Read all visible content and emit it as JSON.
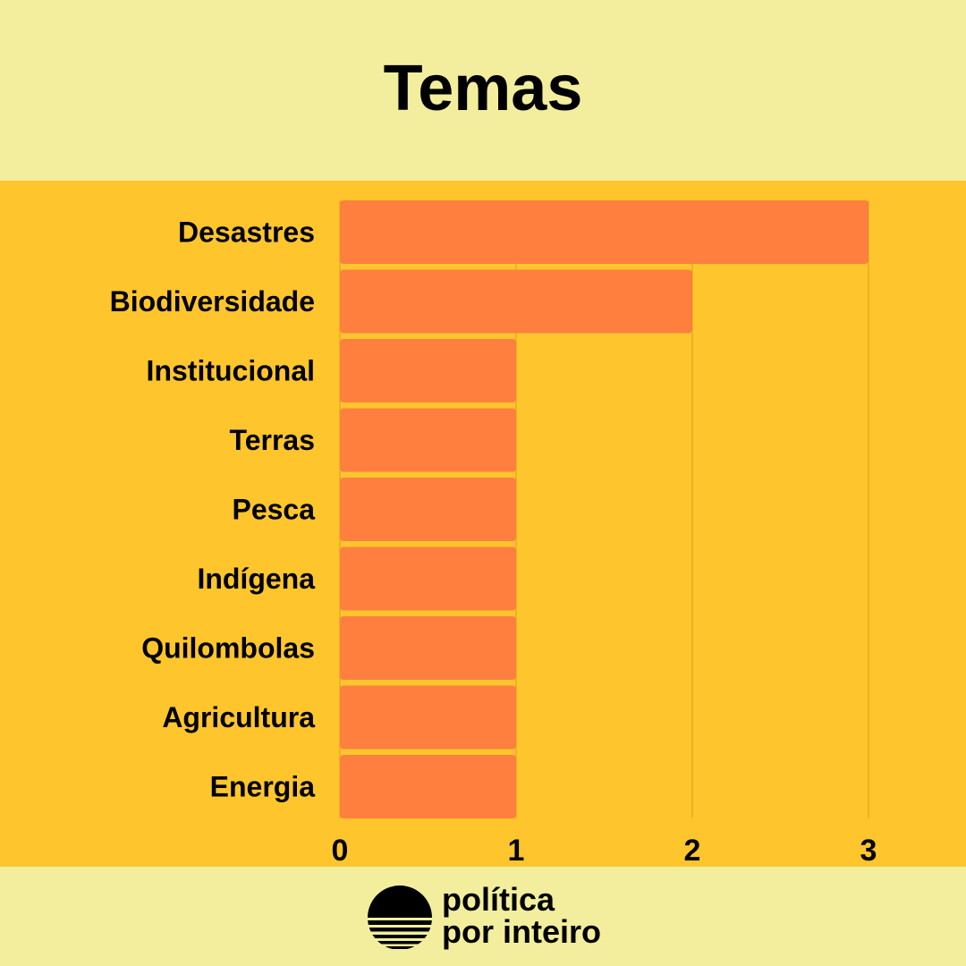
{
  "chart_data": {
    "type": "bar",
    "orientation": "horizontal",
    "title": "Temas",
    "categories": [
      "Desastres",
      "Biodiversidade",
      "Institucional",
      "Terras",
      "Pesca",
      "Indígena",
      "Quilombolas",
      "Agricultura",
      "Energia"
    ],
    "values": [
      3,
      2,
      1,
      1,
      1,
      1,
      1,
      1,
      1
    ],
    "xlim": [
      0,
      3
    ],
    "xticks": [
      "0",
      "1",
      "2",
      "3"
    ],
    "grid": true,
    "legend": "none"
  },
  "colors": {
    "background": "#f2ee9d",
    "chart_band": "#fec52d",
    "bar": "#ff7f3f",
    "grid": "#d9a020",
    "text": "#000000"
  },
  "logo": {
    "line1": "política",
    "line2": "por inteiro",
    "icon": "sunset-circle-icon"
  }
}
